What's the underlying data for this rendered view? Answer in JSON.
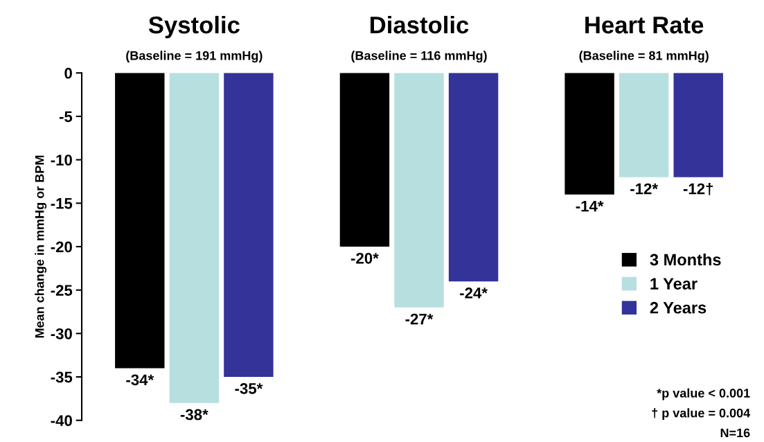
{
  "chart_data": {
    "type": "bar",
    "ylabel": "Mean change in mmHg or BPM",
    "categories": [
      "Systolic",
      "Diastolic",
      "Heart Rate"
    ],
    "series": [
      {
        "name": "3 Months",
        "color": "#000000",
        "values": [
          -34,
          -20,
          -14
        ],
        "value_labels": [
          "-34*",
          "-20*",
          "-14*"
        ]
      },
      {
        "name": "1 Year",
        "color": "#b7dfe0",
        "values": [
          -38,
          -27,
          -12
        ],
        "value_labels": [
          "-38*",
          "-27*",
          "-12*"
        ]
      },
      {
        "name": "2 Years",
        "color": "#333399",
        "values": [
          -35,
          -24,
          -12
        ],
        "value_labels": [
          "-35*",
          "-24*",
          "-12†"
        ]
      }
    ],
    "ylim": [
      -40,
      0
    ],
    "yticks": [
      -40,
      -35,
      -30,
      -25,
      -20,
      -15,
      -10,
      -5,
      0
    ],
    "legend": "right",
    "grid": false,
    "annotations": [
      "(Baseline = 191 mmHg)",
      "(Baseline = 116 mmHg)",
      "(Baseline = 81 mmHg)",
      "*p value < 0.001",
      "† p value = 0.004",
      "N=16"
    ]
  }
}
